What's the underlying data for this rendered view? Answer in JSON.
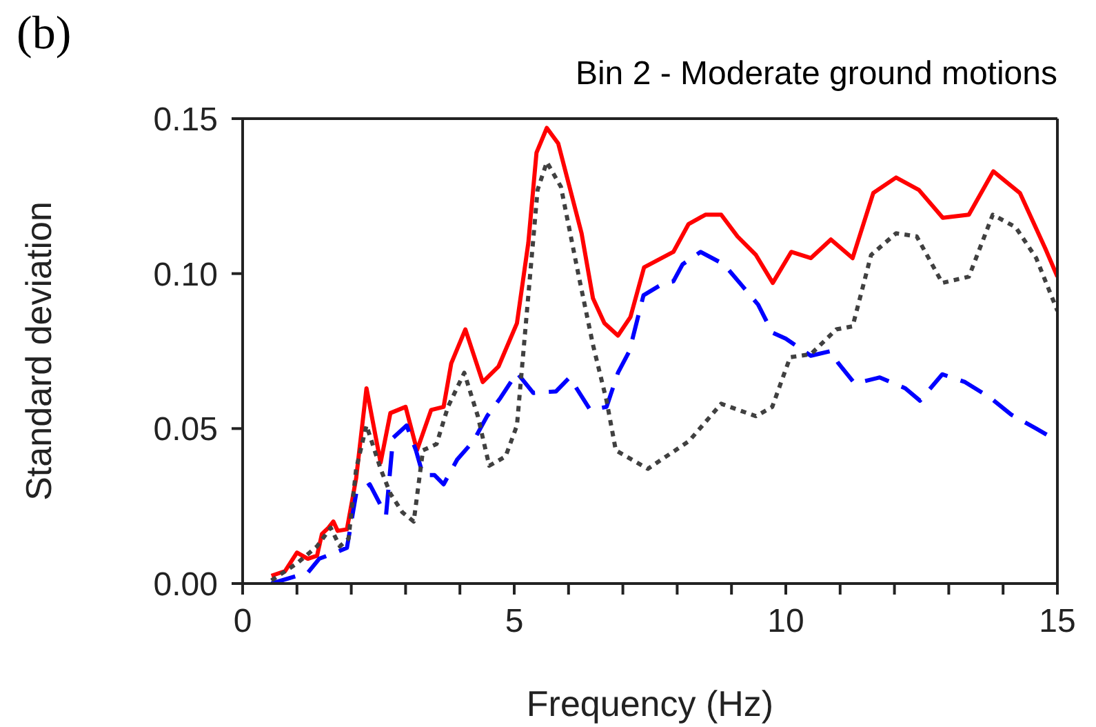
{
  "chart_data": {
    "type": "line",
    "title": "Bin 2 - Moderate ground motions",
    "xlabel": "Frequency (Hz)",
    "ylabel": "Standard deviation",
    "annotations": [
      "(b)"
    ],
    "xlim": [
      0,
      15
    ],
    "ylim": [
      0,
      0.15
    ],
    "xticks": [
      0,
      {
        "value": 1,
        "label": null
      },
      {
        "value": 2,
        "label": null
      },
      {
        "value": 3,
        "label": null
      },
      {
        "value": 4,
        "label": null
      },
      5,
      {
        "value": 6,
        "label": null
      },
      {
        "value": 7,
        "label": null
      },
      {
        "value": 8,
        "label": null
      },
      {
        "value": 9,
        "label": null
      },
      10,
      {
        "value": 11,
        "label": null
      },
      {
        "value": 12,
        "label": null
      },
      {
        "value": 13,
        "label": null
      },
      {
        "value": 14,
        "label": null
      },
      15
    ],
    "yticks": [
      {
        "value": 0,
        "label": "0.00"
      },
      0.05,
      {
        "value": 0.1,
        "label": "0.10"
      },
      0.15
    ],
    "marker": "none",
    "series": [
      {
        "color": "#ff0000",
        "line_style": "solid",
        "x": [
          0.53,
          0.78,
          1.0,
          1.2,
          1.37,
          1.46,
          1.58,
          1.67,
          1.75,
          1.92,
          2.09,
          2.28,
          2.54,
          2.72,
          3.0,
          3.21,
          3.47,
          3.7,
          3.84,
          4.1,
          4.42,
          4.71,
          5.05,
          5.26,
          5.41,
          5.6,
          5.81,
          6.24,
          6.45,
          6.66,
          6.91,
          7.14,
          7.39,
          7.93,
          8.21,
          8.52,
          8.81,
          9.11,
          9.45,
          9.76,
          10.1,
          10.46,
          10.83,
          11.23,
          11.61,
          12.03,
          12.45,
          12.89,
          13.37,
          13.82,
          14.31,
          14.78,
          15.0
        ],
        "values": [
          0.0025,
          0.004,
          0.01,
          0.008,
          0.009,
          0.016,
          0.018,
          0.02,
          0.017,
          0.0175,
          0.034,
          0.063,
          0.039,
          0.055,
          0.057,
          0.043,
          0.056,
          0.057,
          0.071,
          0.082,
          0.065,
          0.07,
          0.084,
          0.11,
          0.139,
          0.147,
          0.142,
          0.113,
          0.092,
          0.084,
          0.08,
          0.086,
          0.102,
          0.107,
          0.116,
          0.119,
          0.119,
          0.112,
          0.106,
          0.097,
          0.107,
          0.105,
          0.111,
          0.105,
          0.126,
          0.131,
          0.127,
          0.118,
          0.119,
          0.133,
          0.126,
          0.108,
          0.099
        ]
      },
      {
        "color": "#0000ff",
        "line_style": "dashed",
        "x": [
          0.53,
          1.2,
          1.41,
          1.71,
          1.92,
          2.09,
          2.34,
          2.64,
          2.77,
          3.02,
          3.19,
          3.32,
          3.53,
          3.7,
          3.95,
          4.25,
          4.5,
          4.75,
          5.05,
          5.35,
          5.77,
          6.02,
          6.4,
          6.7,
          6.91,
          7.12,
          7.38,
          7.76,
          7.93,
          8.1,
          8.43,
          8.86,
          9.2,
          9.49,
          9.75,
          10.0,
          10.46,
          10.83,
          10.97,
          11.27,
          11.73,
          12.2,
          12.47,
          12.88,
          13.3,
          13.76,
          14.15,
          14.61,
          15.0
        ],
        "values": [
          0.0,
          0.0035,
          0.008,
          0.01,
          0.0115,
          0.029,
          0.032,
          0.022,
          0.047,
          0.051,
          0.043,
          0.035,
          0.035,
          0.032,
          0.04,
          0.046,
          0.054,
          0.06,
          0.068,
          0.0615,
          0.062,
          0.0665,
          0.056,
          0.057,
          0.068,
          0.075,
          0.093,
          0.097,
          0.0975,
          0.103,
          0.107,
          0.103,
          0.096,
          0.09,
          0.081,
          0.079,
          0.0735,
          0.075,
          0.071,
          0.0645,
          0.0665,
          0.063,
          0.059,
          0.0675,
          0.065,
          0.06,
          0.0545,
          0.05,
          0.046
        ]
      },
      {
        "color": "#404040",
        "line_style": "dotted",
        "x": [
          0.53,
          1.0,
          1.37,
          1.62,
          1.79,
          1.95,
          2.09,
          2.28,
          2.54,
          2.72,
          2.94,
          3.15,
          3.32,
          3.57,
          3.78,
          4.08,
          4.33,
          4.54,
          4.84,
          5.05,
          5.22,
          5.43,
          5.6,
          5.86,
          6.19,
          6.45,
          6.7,
          6.87,
          7.46,
          8.22,
          8.81,
          9.45,
          9.75,
          10.08,
          10.46,
          10.93,
          11.23,
          11.57,
          12.03,
          12.41,
          12.88,
          13.37,
          13.81,
          14.23,
          14.61,
          15.0
        ],
        "values": [
          0.001,
          0.0065,
          0.012,
          0.018,
          0.012,
          0.0145,
          0.037,
          0.051,
          0.037,
          0.029,
          0.023,
          0.02,
          0.043,
          0.045,
          0.057,
          0.068,
          0.054,
          0.038,
          0.041,
          0.051,
          0.085,
          0.127,
          0.136,
          0.128,
          0.099,
          0.077,
          0.059,
          0.043,
          0.037,
          0.046,
          0.058,
          0.054,
          0.057,
          0.073,
          0.074,
          0.082,
          0.083,
          0.106,
          0.113,
          0.112,
          0.097,
          0.099,
          0.119,
          0.115,
          0.105,
          0.088
        ]
      }
    ]
  }
}
